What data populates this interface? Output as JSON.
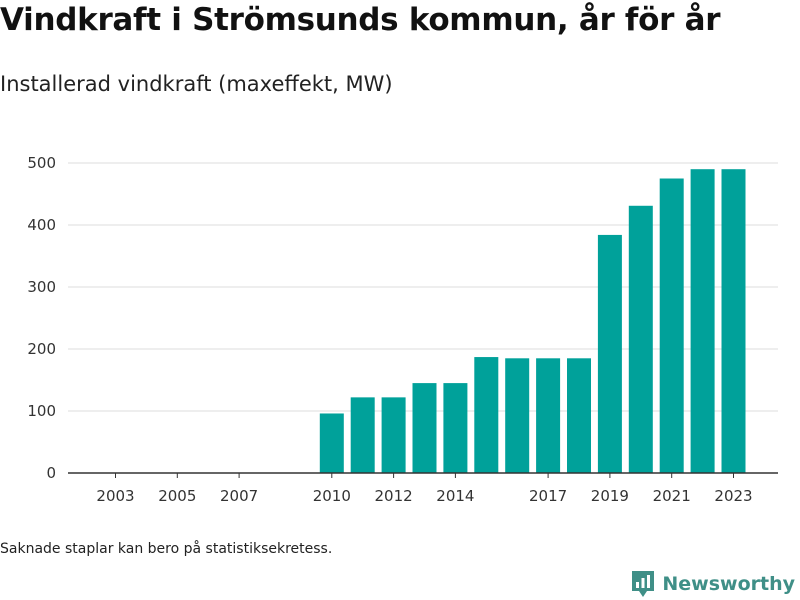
{
  "title": "Vindkraft i Strömsunds kommun, år för år",
  "subtitle": "Installerad vindkraft (maxeffekt, MW)",
  "footnote": "Saknade staplar kan bero på statistiksekretess.",
  "brand": {
    "name": "Newsworthy",
    "color": "#3f8f87",
    "icon": "bar-chart-pin-icon"
  },
  "chart_data": {
    "type": "bar",
    "title": "",
    "xlabel": "",
    "ylabel": "",
    "categories": [
      "2003",
      "2004",
      "2005",
      "2006",
      "2007",
      "2008",
      "2009",
      "2010",
      "2011",
      "2012",
      "2013",
      "2014",
      "2015",
      "2016",
      "2017",
      "2018",
      "2019",
      "2020",
      "2021",
      "2022",
      "2023"
    ],
    "values": [
      null,
      null,
      null,
      null,
      null,
      null,
      null,
      96,
      122,
      122,
      145,
      145,
      187,
      185,
      185,
      185,
      384,
      431,
      475,
      490,
      490
    ],
    "ylim": [
      0,
      500
    ],
    "yticks": [
      0,
      100,
      200,
      300,
      400,
      500
    ],
    "xtick_labels": [
      "2003",
      "2005",
      "2007",
      "2010",
      "2012",
      "2014",
      "2017",
      "2019",
      "2021",
      "2023"
    ],
    "bar_color": "#00a19a",
    "grid": true,
    "legend": "none"
  }
}
